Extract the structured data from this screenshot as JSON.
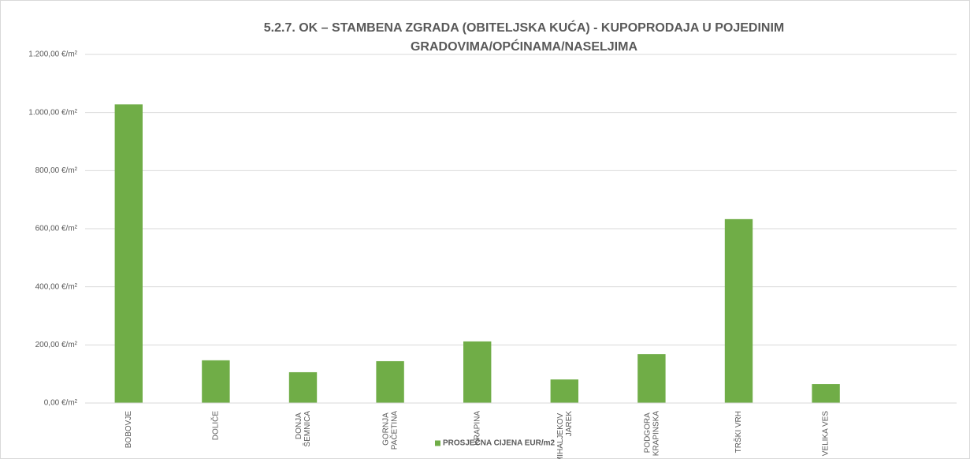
{
  "chart_data": {
    "type": "bar",
    "title": "5.2.7. OK – STAMBENA ZGRADA (OBITELJSKA KUĆA) - KUPOPRODAJA U POJEDINIM GRADOVIMA/OPĆINAMA/NASELJIMA",
    "categories": [
      "BOBOVJE",
      "DOLIČE",
      "DONJA ŠEMNICA",
      "GORNJA PAČETINA",
      "KRAPINA",
      "MIHALJEKOV JAREK",
      "PODGORA KRAPINSKA",
      "TRŠKI VRH",
      "VELIKA VES",
      null
    ],
    "series": [
      {
        "name": "PROSJEČNA CIJENA EUR/m2",
        "color": "#70ad47",
        "values": [
          1028,
          147,
          106,
          144,
          212,
          81,
          168,
          633,
          65,
          null
        ]
      }
    ],
    "ylim": [
      0,
      1200
    ],
    "yticks": [
      {
        "value": 0,
        "label": "0,00 €/m²"
      },
      {
        "value": 200,
        "label": "200,00 €/m²"
      },
      {
        "value": 400,
        "label": "400,00 €/m²"
      },
      {
        "value": 600,
        "label": "600,00 €/m²"
      },
      {
        "value": 800,
        "label": "800,00 €/m²"
      },
      {
        "value": 1000,
        "label": "1.000,00 €/m²"
      },
      {
        "value": 1200,
        "label": "1.200,00 €/m²"
      }
    ],
    "grid": true,
    "legend": "bottom"
  }
}
